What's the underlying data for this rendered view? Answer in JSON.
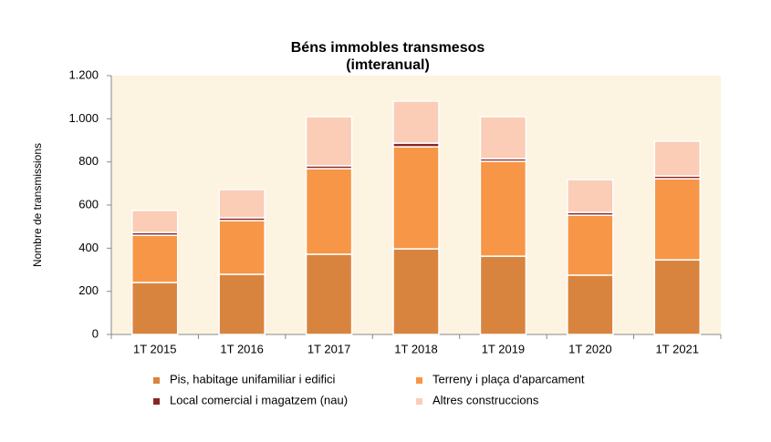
{
  "chart_data": {
    "type": "stacked_bar",
    "title": "Béns immobles transmesos",
    "subtitle": "(imteranual)",
    "y_label": "Nombre de transmissions",
    "categories": [
      "1T 2015",
      "1T 2016",
      "1T 2017",
      "1T 2018",
      "1T 2019",
      "1T 2020",
      "1T 2021"
    ],
    "series": [
      {
        "name": "Pis, habitage unifamiliar i edifici",
        "color": "#d9843e",
        "values": [
          241,
          279,
          372,
          397,
          363,
          275,
          346
        ]
      },
      {
        "name": "Terreny i plaça d'aparcament",
        "color": "#f79646",
        "values": [
          219,
          249,
          397,
          473,
          440,
          278,
          376
        ]
      },
      {
        "name": "Local comercial i magatzem (nau)",
        "color": "#8b2525",
        "values": [
          13,
          13,
          13,
          17,
          12,
          13,
          13
        ]
      },
      {
        "name": "Altres construccions",
        "color": "#fbcdb6",
        "values": [
          102,
          131,
          228,
          195,
          195,
          152,
          161
        ]
      }
    ],
    "ylim": [
      0,
      1200
    ],
    "yticks": [
      0,
      200,
      400,
      600,
      800,
      {
        "value": 1000,
        "label": "1.000"
      },
      {
        "value": 1200,
        "label": "1.200"
      }
    ],
    "plot_background": "#fdf3e1"
  }
}
